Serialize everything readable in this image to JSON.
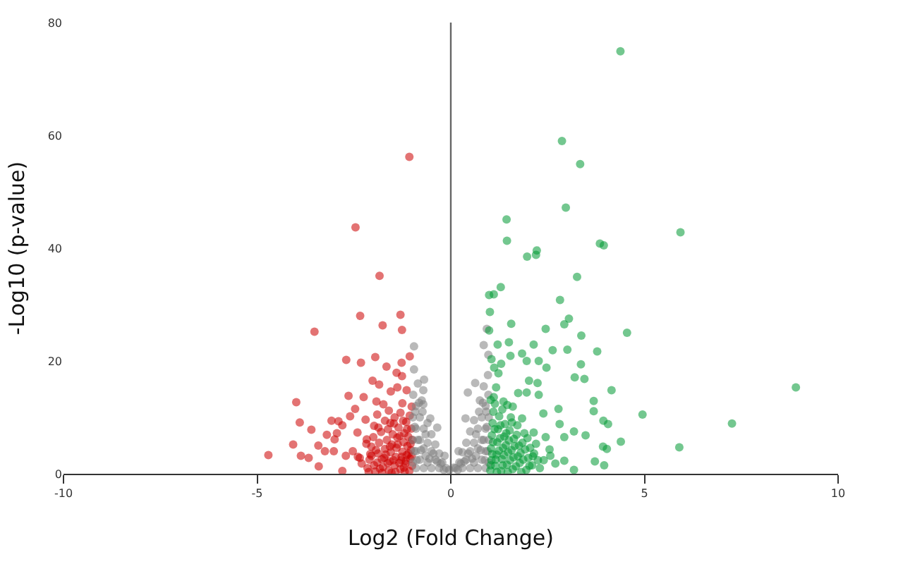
{
  "chart_data": {
    "type": "scatter",
    "xlabel": "Log2 (Fold Change)",
    "ylabel": "-Log10 (p-value)",
    "xlim": [
      -10,
      10
    ],
    "xticks": [
      -10,
      -5,
      0,
      5,
      10
    ],
    "ylim": [
      0,
      80
    ],
    "yticks": [
      0,
      20,
      40,
      60,
      80
    ],
    "grid": false,
    "marker": "circle",
    "ref_lines": [
      {
        "axis": "x",
        "value": 0,
        "color": "#666666"
      }
    ],
    "series": [
      {
        "color": "#cc0000",
        "x": [
          -1.07,
          -2.46,
          -1.84,
          -2.34,
          -1.3,
          -3.52,
          -1.76,
          -1.26,
          -2.7,
          -2.32,
          -1.95,
          -1.27,
          -1.06,
          -1.66,
          -1.4,
          -2.02,
          -3.99,
          -2.64,
          -2.47,
          -1.92,
          -3.08,
          -2.94,
          -4.71,
          -4.07,
          -3.87,
          -3.67,
          -3.42,
          -3.25,
          -3.41,
          -2.8,
          -3.0,
          -2.41,
          -1.56,
          -1.14,
          -1.01,
          -2.17,
          -2.53,
          -2.05,
          -1.74,
          -1.38,
          -1.26,
          -3.02,
          -2.71,
          -2.35,
          -2.9,
          -2.6,
          -2.2,
          -1.9,
          -1.6,
          -1.3,
          -1.15,
          -2.25,
          -1.55,
          -1.85,
          -2.8,
          -3.2,
          -3.6,
          -3.9,
          -2.15,
          -2.1,
          -2.05,
          -2.0,
          -1.95,
          -1.9,
          -1.88,
          -1.85,
          -1.8,
          -1.75,
          -1.72,
          -1.7,
          -1.65,
          -1.6,
          -1.58,
          -1.55,
          -1.52,
          -1.5,
          -1.45,
          -1.42,
          -1.4,
          -1.38,
          -1.35,
          -1.3,
          -1.28,
          -1.25,
          -1.22,
          -1.2,
          -1.17,
          -1.14,
          -1.12,
          -1.1,
          -1.07,
          -1.05,
          -1.03,
          -1.02,
          -1.0,
          -1.0,
          -2.3,
          -2.4,
          -1.98,
          -1.7,
          -1.45,
          -1.25,
          -2.12,
          -2.08,
          -1.98,
          -1.93,
          -1.83,
          -1.78,
          -1.68,
          -1.63,
          -1.57,
          -1.48,
          -1.43,
          -1.37,
          -1.33,
          -1.27,
          -1.19,
          -1.16,
          -1.09,
          -1.04,
          -1.01,
          -1.13,
          -1.32,
          -1.62,
          -1.87,
          -2.18,
          -1.23,
          -1.06,
          -1.47,
          -1.77,
          -1.53,
          -1.21
        ],
        "values": [
          56.2,
          43.7,
          35.1,
          28.0,
          28.2,
          25.2,
          26.3,
          25.5,
          20.2,
          19.7,
          20.7,
          19.7,
          20.8,
          19.0,
          17.9,
          16.5,
          12.7,
          13.8,
          11.5,
          12.8,
          9.4,
          7.2,
          3.3,
          5.2,
          3.2,
          2.8,
          5.0,
          4.0,
          1.3,
          0.5,
          6.1,
          7.3,
          9.0,
          14.8,
          11.9,
          6.1,
          4.0,
          3.2,
          12.3,
          15.3,
          17.3,
          4.0,
          3.2,
          2.8,
          9.3,
          10.2,
          9.6,
          10.5,
          11.2,
          10.8,
          9.2,
          13.6,
          14.6,
          15.8,
          8.6,
          6.9,
          7.8,
          9.1,
          1.0,
          2.5,
          4.8,
          6.5,
          0.4,
          2.0,
          3.6,
          5.5,
          7.4,
          1.2,
          2.8,
          4.4,
          6.0,
          0.6,
          2.2,
          3.8,
          5.2,
          7.0,
          1.5,
          3.0,
          4.6,
          6.4,
          8.2,
          0.8,
          2.4,
          3.9,
          5.6,
          7.2,
          1.8,
          3.3,
          4.9,
          6.6,
          0.5,
          2.7,
          4.2,
          8.0,
          1.4,
          6.0,
          1.8,
          3.0,
          8.5,
          9.4,
          10.0,
          12.5,
          0.3,
          3.5,
          1.5,
          4.2,
          0.9,
          2.6,
          3.4,
          1.9,
          4.8,
          2.4,
          0.3,
          5.2,
          1.9,
          3.0,
          0.4,
          2.3,
          3.6,
          5.3,
          3.1,
          7.9,
          6.7,
          7.9,
          8.2,
          5.3,
          9.4,
          10.3,
          8.9,
          0.2,
          0.2,
          1.1
        ]
      },
      {
        "color": "#808080",
        "x": [
          -0.95,
          -0.95,
          -0.69,
          -0.71,
          -0.71,
          -0.53,
          -0.35,
          -0.16,
          -0.04,
          0.85,
          0.93,
          0.97,
          0.63,
          0.44,
          0.38,
          0.2,
          0.08,
          -0.98,
          -0.98,
          -0.98,
          -0.97,
          -0.9,
          -0.9,
          -0.9,
          -0.9,
          -0.85,
          -0.8,
          -0.8,
          -0.8,
          -0.75,
          -0.7,
          -0.7,
          -0.7,
          -0.6,
          -0.6,
          -0.6,
          -0.5,
          -0.5,
          -0.5,
          -0.4,
          -0.4,
          -0.3,
          -0.3,
          -0.22,
          -0.12,
          0.98,
          0.98,
          0.98,
          0.97,
          0.96,
          0.9,
          0.9,
          0.9,
          0.9,
          0.85,
          0.8,
          0.8,
          0.8,
          0.75,
          0.7,
          0.7,
          0.7,
          0.6,
          0.6,
          0.6,
          0.5,
          0.5,
          0.5,
          0.4,
          0.4,
          0.3,
          0.3,
          0.22,
          0.12,
          -0.95,
          -0.93,
          -0.92,
          -0.88,
          -0.85,
          -0.82,
          -0.77,
          -0.73,
          -0.65,
          -0.65,
          -0.55,
          -0.45,
          -0.35,
          -0.26,
          -0.18,
          0.95,
          0.93,
          0.92,
          0.88,
          0.85,
          0.83,
          0.77,
          0.73,
          0.65,
          0.65,
          0.55,
          0.45,
          0.35,
          0.26,
          0.18
        ],
        "values": [
          22.6,
          18.5,
          16.7,
          14.8,
          12.3,
          9.8,
          8.2,
          3.2,
          0.7,
          22.8,
          25.7,
          21.1,
          16.1,
          14.4,
          9.8,
          4.0,
          1.1,
          2,
          6,
          10,
          14,
          1,
          4,
          8,
          12,
          16,
          2.5,
          6,
          10,
          13,
          1,
          4.5,
          8,
          2,
          5.5,
          9,
          1,
          4,
          7,
          2.5,
          5.2,
          1,
          3.6,
          2,
          1,
          2,
          6,
          10,
          14,
          17.5,
          1,
          4,
          8,
          12,
          15.5,
          2.5,
          6,
          10,
          13,
          1,
          4.5,
          8,
          2,
          5.5,
          9.5,
          1,
          4,
          7.5,
          2.5,
          5.5,
          1,
          3.8,
          2,
          1,
          4,
          8.3,
          11,
          2.4,
          6,
          12.6,
          4.2,
          11,
          3.2,
          7,
          2.7,
          3.6,
          2.2,
          1.8,
          0.7,
          4,
          8.3,
          11,
          2.4,
          6,
          12.6,
          4.2,
          11,
          3.2,
          7,
          2.7,
          3.6,
          2.2,
          1.8,
          0.7
        ]
      },
      {
        "color": "#009933",
        "x": [
          4.38,
          2.87,
          3.34,
          2.97,
          1.44,
          1.45,
          1.97,
          2.22,
          2.2,
          3.85,
          3.95,
          3.26,
          1.29,
          1.11,
          0.99,
          8.91,
          7.26,
          5.93,
          4.95,
          5.9,
          4.39,
          4.55,
          2.82,
          1.01,
          1.56,
          3.05,
          2.93,
          2.45,
          0.99,
          3.37,
          1.21,
          1.5,
          2.14,
          2.63,
          3.01,
          3.78,
          1.84,
          1.54,
          2.27,
          1.96,
          2.47,
          3.36,
          3.2,
          3.45,
          2.02,
          2.24,
          2.27,
          1.96,
          1.74,
          4.15,
          3.69,
          3.69,
          2.78,
          3.94,
          4.06,
          2.81,
          3.48,
          3.18,
          2.93,
          3.93,
          4.03,
          3.72,
          3.96,
          3.18,
          2.93,
          2.57,
          2.45,
          2.14,
          1.84,
          2.39,
          1.6,
          1.36,
          1.11,
          1.23,
          1.17,
          1.02,
          1.05,
          1.04,
          1.06,
          1.08,
          1.1,
          1.15,
          1.18,
          1.2,
          1.22,
          1.25,
          1.3,
          1.32,
          1.35,
          1.38,
          1.4,
          1.45,
          1.48,
          1.5,
          1.52,
          1.55,
          1.6,
          1.62,
          1.65,
          1.7,
          1.72,
          1.78,
          1.8,
          1.85,
          1.9,
          1.95,
          2.0,
          2.05,
          2.1,
          2.15,
          2.2,
          2.3,
          2.4,
          2.55,
          2.7,
          1.12,
          1.3,
          1.05,
          1.03,
          1.07,
          1.09,
          1.13,
          1.16,
          1.19,
          1.24,
          1.27,
          1.28,
          1.34,
          1.37,
          1.42,
          1.43,
          1.47,
          1.53,
          1.57,
          1.58,
          1.63,
          1.68,
          1.73,
          1.76,
          1.82,
          1.87,
          1.92,
          1.98,
          2.03,
          2.12,
          2.25,
          1.14,
          1.33,
          1.03,
          1.46
        ],
        "values": [
          74.9,
          59.0,
          54.9,
          47.2,
          45.1,
          41.3,
          38.5,
          39.6,
          38.8,
          40.8,
          40.5,
          34.9,
          33.1,
          31.8,
          31.7,
          15.3,
          8.9,
          42.8,
          10.5,
          4.7,
          5.7,
          25.0,
          30.8,
          28.7,
          26.6,
          27.5,
          26.5,
          25.7,
          25.4,
          24.5,
          22.9,
          23.3,
          22.9,
          21.9,
          22.0,
          21.7,
          21.3,
          20.9,
          20.0,
          20.0,
          18.8,
          19.4,
          17.1,
          16.8,
          16.5,
          16.1,
          14.0,
          14.4,
          14.3,
          14.8,
          12.9,
          11.1,
          11.5,
          9.4,
          8.8,
          8.8,
          6.8,
          7.5,
          6.5,
          4.8,
          4.4,
          2.2,
          1.5,
          0.7,
          2.3,
          3.2,
          6.5,
          7.3,
          9.8,
          10.7,
          11.9,
          12.8,
          13.6,
          17.8,
          15.3,
          0.6,
          2.4,
          4.5,
          6.8,
          9.0,
          11.0,
          1.4,
          3.4,
          5.6,
          7.9,
          10.2,
          0.5,
          2.6,
          4.6,
          6.6,
          8.8,
          1.6,
          3.8,
          5.9,
          7.7,
          10.0,
          0.8,
          2.9,
          4.9,
          6.9,
          8.6,
          1.9,
          3.7,
          5.5,
          7.2,
          0.7,
          2.8,
          4.6,
          1.5,
          3.6,
          5.3,
          1.0,
          2.4,
          4.3,
          1.8,
          18.8,
          19.5,
          20.3,
          1.5,
          3.5,
          5.6,
          7.9,
          2.5,
          0.3,
          4.1,
          6.3,
          8.6,
          1.5,
          3.3,
          5.1,
          7.2,
          0.3,
          2.4,
          4.2,
          9.1,
          6.2,
          1.3,
          3.1,
          5.0,
          0.3,
          2.5,
          4.3,
          6.3,
          1.4,
          3.1,
          2.4,
          12.4,
          11.4,
          13.1,
          12.2
        ]
      }
    ]
  }
}
